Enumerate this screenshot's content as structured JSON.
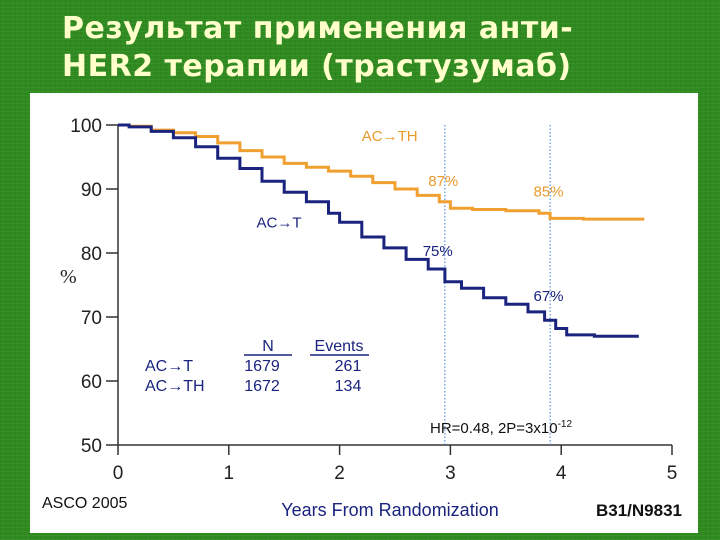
{
  "slide": {
    "title_line1": "Результат применения анти-",
    "title_line2": "HER2 терапии (трастузумаб)"
  },
  "colors": {
    "background": "#2f8a1f",
    "title": "#ffffcc",
    "series_ac_th": "#f0a030",
    "series_ac_t": "#1a237e",
    "annotation_orange": "#e89a2c",
    "annotation_blue": "#1a237e",
    "guide_lines": "#3a7bd5"
  },
  "footer": {
    "left": "ASCO 2005",
    "right": "B31/N9831"
  },
  "chart_data": {
    "type": "line",
    "title": "",
    "xlabel": "Years From Randomization",
    "ylabel": "%",
    "xlim": [
      0,
      5
    ],
    "ylim": [
      50,
      100
    ],
    "x_ticks": [
      "0",
      "1",
      "2",
      "3",
      "4",
      "5"
    ],
    "y_ticks": [
      "50",
      "60",
      "70",
      "80",
      "90",
      "100"
    ],
    "vlines": [
      2.95,
      3.9
    ],
    "series": [
      {
        "name": "AC→TH",
        "color": "#f0a030",
        "points": [
          [
            0,
            100
          ],
          [
            0.1,
            99.8
          ],
          [
            0.3,
            99.2
          ],
          [
            0.5,
            98.8
          ],
          [
            0.7,
            98.2
          ],
          [
            0.9,
            97.2
          ],
          [
            1.1,
            96.0
          ],
          [
            1.3,
            95.0
          ],
          [
            1.5,
            94.0
          ],
          [
            1.7,
            93.4
          ],
          [
            1.9,
            92.8
          ],
          [
            2.1,
            92.0
          ],
          [
            2.3,
            91.0
          ],
          [
            2.5,
            90.0
          ],
          [
            2.7,
            89.0
          ],
          [
            2.9,
            88.0
          ],
          [
            3.0,
            87.0
          ],
          [
            3.2,
            86.8
          ],
          [
            3.5,
            86.6
          ],
          [
            3.8,
            86.2
          ],
          [
            3.9,
            85.4
          ],
          [
            4.2,
            85.3
          ],
          [
            4.5,
            85.3
          ],
          [
            4.75,
            85.3
          ]
        ]
      },
      {
        "name": "AC→T",
        "color": "#1a237e",
        "points": [
          [
            0,
            100
          ],
          [
            0.1,
            99.7
          ],
          [
            0.3,
            99.0
          ],
          [
            0.5,
            98.0
          ],
          [
            0.7,
            96.6
          ],
          [
            0.9,
            94.8
          ],
          [
            1.1,
            93.2
          ],
          [
            1.3,
            91.2
          ],
          [
            1.5,
            89.5
          ],
          [
            1.7,
            88.0
          ],
          [
            1.9,
            86.2
          ],
          [
            2.0,
            84.8
          ],
          [
            2.2,
            82.5
          ],
          [
            2.4,
            80.8
          ],
          [
            2.6,
            79.0
          ],
          [
            2.8,
            77.5
          ],
          [
            2.95,
            75.5
          ],
          [
            3.1,
            74.5
          ],
          [
            3.3,
            73.0
          ],
          [
            3.5,
            72.0
          ],
          [
            3.7,
            70.8
          ],
          [
            3.85,
            69.5
          ],
          [
            3.95,
            68.2
          ],
          [
            4.05,
            67.2
          ],
          [
            4.3,
            67.0
          ],
          [
            4.7,
            67.0
          ]
        ]
      }
    ],
    "annotations": [
      {
        "text": "AC→TH",
        "x": 2.2,
        "y": 97.5,
        "color": "#e89a2c"
      },
      {
        "text": "87%",
        "x": 2.8,
        "y": 90.5,
        "color": "#e89a2c"
      },
      {
        "text": "85%",
        "x": 3.75,
        "y": 88.8,
        "color": "#e89a2c"
      },
      {
        "text": "AC→T",
        "x": 1.25,
        "y": 84.0,
        "color": "#1a237e"
      },
      {
        "text": "75%",
        "x": 2.75,
        "y": 79.5,
        "color": "#1a237e"
      },
      {
        "text": "67%",
        "x": 3.75,
        "y": 72.5,
        "color": "#1a237e"
      }
    ],
    "table": {
      "headers": [
        "N",
        "Events"
      ],
      "rows": [
        {
          "label": "AC→T",
          "n": "1679",
          "events": "261"
        },
        {
          "label": "AC→TH",
          "n": "1672",
          "events": "134"
        }
      ]
    },
    "hr_text": "HR=0.48, 2P=3x10",
    "hr_exponent": "-12"
  }
}
